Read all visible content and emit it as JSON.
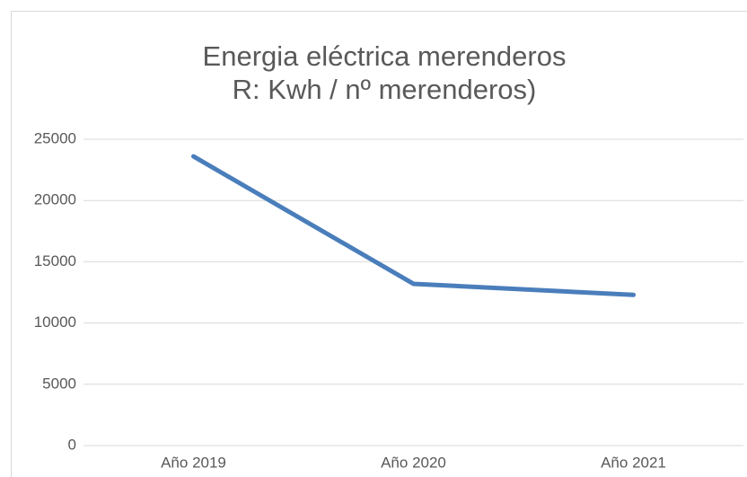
{
  "chart_data": {
    "type": "line",
    "title": [
      "Energia eléctrica merenderos",
      "R: Kwh / nº merenderos)"
    ],
    "categories": [
      "Año 2019",
      "Año 2020",
      "Año 2021"
    ],
    "series": [
      {
        "name": "Kwh / nº merenderos",
        "color": "#4a7ebb",
        "values": [
          23600,
          13200,
          12300
        ]
      }
    ],
    "ylim": [
      0,
      25000
    ],
    "yticks": [
      0,
      5000,
      10000,
      15000,
      20000,
      25000
    ],
    "grid": true
  }
}
